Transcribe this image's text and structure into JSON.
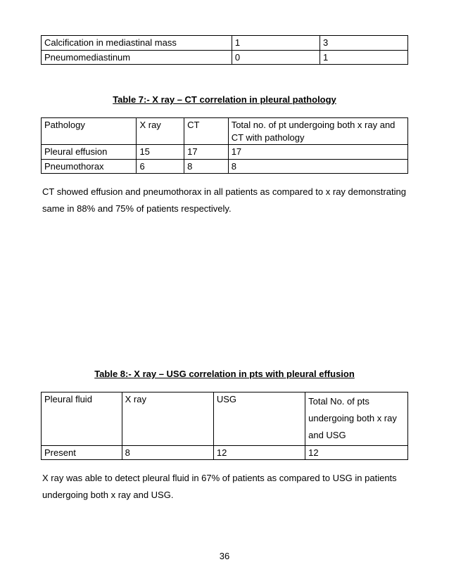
{
  "table_top": {
    "col_widths": [
      "52%",
      "24%",
      "24%"
    ],
    "rows": [
      [
        "Calcification in mediastinal mass",
        "1",
        "3"
      ],
      [
        "Pneumomediastinum",
        "0",
        "1"
      ]
    ]
  },
  "table7": {
    "caption": "Table 7:- X ray – CT correlation in pleural pathology",
    "col_widths": [
      "26%",
      "13%",
      "12%",
      "49%"
    ],
    "header": [
      "Pathology",
      "X ray",
      "CT",
      "Total no. of pt undergoing both x ray and CT with pathology"
    ],
    "rows": [
      [
        "Pleural effusion",
        "15",
        "17",
        "17"
      ],
      [
        "Pneumothorax",
        "6",
        "8",
        "8"
      ]
    ]
  },
  "para7": "CT showed effusion and pneumothorax in all patients as compared to x ray demonstrating same in 88% and 75% of patients respectively.",
  "table8": {
    "caption": "Table 8:- X ray – USG correlation in pts with pleural effusion",
    "col_widths": [
      "22%",
      "25%",
      "25%",
      "28%"
    ],
    "header": [
      "Pleural fluid",
      "X ray",
      "USG",
      "Total No. of pts undergoing both x ray and USG"
    ],
    "rows": [
      [
        "Present",
        "8",
        "12",
        "12"
      ]
    ]
  },
  "para8": "X ray was able to detect pleural fluid in 67% of patients as compared to USG in patients undergoing both x ray and USG.",
  "page_number": "36"
}
